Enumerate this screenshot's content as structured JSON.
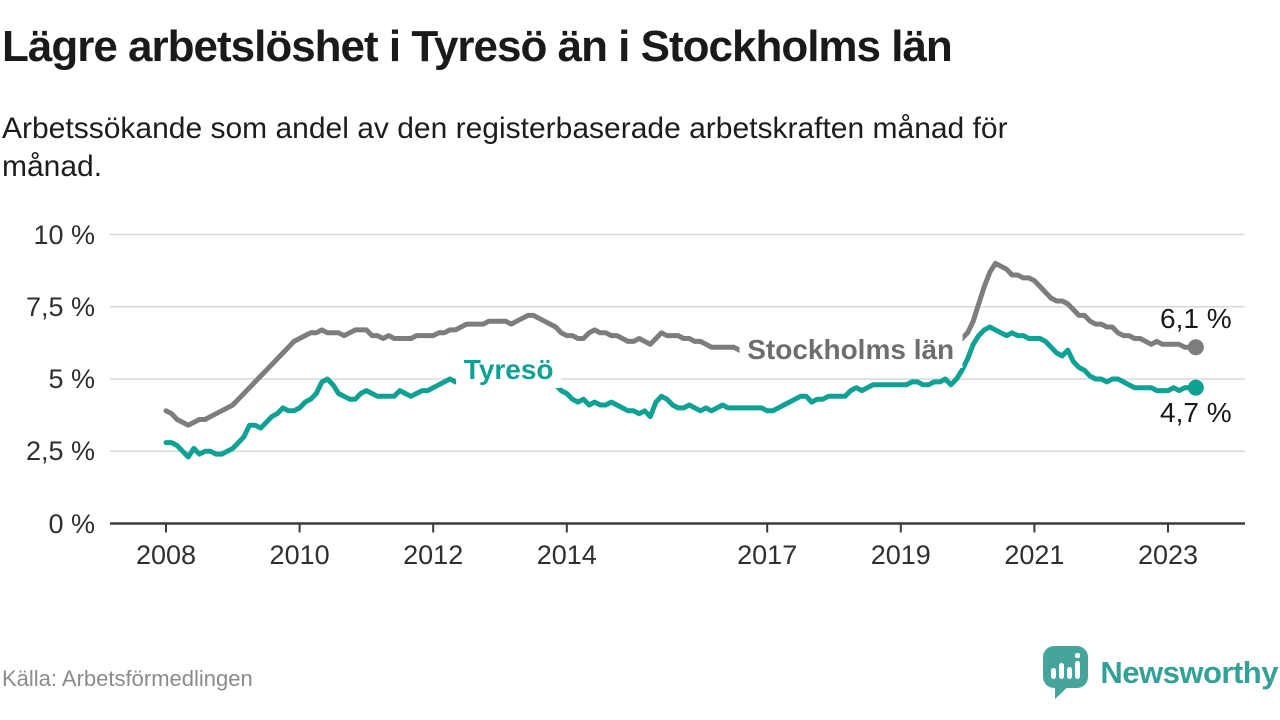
{
  "title": "Lägre arbetslöshet i Tyresö än i Stockholms län",
  "subtitle_lines": {
    "line1": "Arbetssökande som andel av den registerbaserade arbetskraften månad för",
    "line2": "månad."
  },
  "source": "Källa: Arbetsförmedlingen",
  "logo": {
    "name": "Newsworthy",
    "icon": "newsworthy-speech-bubble-bar-chart-icon",
    "bubble_color": "#45a59d",
    "text_color": "#35a098"
  },
  "colors": {
    "background": "#ffffff",
    "gridline": "#d8d8d8",
    "axis": "#3a3a3a",
    "tick_text": "#2f2f2f",
    "title_text": "#1a1a1a",
    "end_label_text": "#191919",
    "source_text": "#8b8b8b"
  },
  "chart_data": {
    "type": "line",
    "title": "Lägre arbetslöshet i Tyresö än i Stockholms län",
    "subtitle": "Arbetssökande som andel av den registerbaserade arbetskraften månad för månad.",
    "x_interval": "monthly",
    "x_start": "2008-01",
    "x_end": "2023-06",
    "xlim": [
      2008.0,
      2023.6
    ],
    "ylim": [
      0,
      10
    ],
    "grid": "horizontal",
    "y_ticks": [
      {
        "label": "10 %",
        "value": 10
      },
      {
        "label": "7,5 %",
        "value": 7.5
      },
      {
        "label": "5 %",
        "value": 5
      },
      {
        "label": "2,5 %",
        "value": 2.5
      },
      {
        "label": "0 %",
        "value": 0
      }
    ],
    "x_ticks": [
      {
        "label": "2008",
        "year": 2008
      },
      {
        "label": "2010",
        "year": 2010
      },
      {
        "label": "2012",
        "year": 2012
      },
      {
        "label": "2014",
        "year": 2014
      },
      {
        "label": "2017",
        "year": 2017
      },
      {
        "label": "2019",
        "year": 2019
      },
      {
        "label": "2021",
        "year": 2021
      },
      {
        "label": "2023",
        "year": 2023
      }
    ],
    "series": [
      {
        "name": "Stockholms län",
        "color": "#7d7d7d",
        "label_color": "#6e6e6e",
        "end_label": "6,1 %",
        "end_label_position": "above",
        "end_value": 6.1,
        "label_at": {
          "year": 2018.25,
          "value": 6.0
        },
        "values": [
          3.9,
          3.8,
          3.6,
          3.5,
          3.4,
          3.5,
          3.6,
          3.6,
          3.7,
          3.8,
          3.9,
          4.0,
          4.1,
          4.3,
          4.5,
          4.7,
          4.9,
          5.1,
          5.3,
          5.5,
          5.7,
          5.9,
          6.1,
          6.3,
          6.4,
          6.5,
          6.6,
          6.6,
          6.7,
          6.6,
          6.6,
          6.6,
          6.5,
          6.6,
          6.7,
          6.7,
          6.7,
          6.5,
          6.5,
          6.4,
          6.5,
          6.4,
          6.4,
          6.4,
          6.4,
          6.5,
          6.5,
          6.5,
          6.5,
          6.6,
          6.6,
          6.7,
          6.7,
          6.8,
          6.9,
          6.9,
          6.9,
          6.9,
          7.0,
          7.0,
          7.0,
          7.0,
          6.9,
          7.0,
          7.1,
          7.2,
          7.2,
          7.1,
          7.0,
          6.9,
          6.8,
          6.6,
          6.5,
          6.5,
          6.4,
          6.4,
          6.6,
          6.7,
          6.6,
          6.6,
          6.5,
          6.5,
          6.4,
          6.3,
          6.3,
          6.4,
          6.3,
          6.2,
          6.4,
          6.6,
          6.5,
          6.5,
          6.5,
          6.4,
          6.4,
          6.3,
          6.3,
          6.2,
          6.1,
          6.1,
          6.1,
          6.1,
          6.1,
          6.0,
          6.0,
          6.1,
          6.1,
          6.1,
          6.0,
          6.0,
          6.0,
          5.9,
          5.9,
          5.9,
          6.0,
          6.0,
          5.9,
          5.9,
          5.9,
          6.0,
          6.0,
          5.9,
          5.9,
          5.9,
          5.9,
          5.9,
          6.0,
          6.0,
          6.0,
          6.0,
          6.0,
          6.1,
          6.1,
          6.1,
          6.1,
          6.1,
          6.1,
          6.1,
          6.2,
          6.2,
          6.2,
          6.2,
          6.2,
          6.4,
          6.6,
          7.0,
          7.6,
          8.2,
          8.7,
          9.0,
          8.9,
          8.8,
          8.6,
          8.6,
          8.5,
          8.5,
          8.4,
          8.2,
          8.0,
          7.8,
          7.7,
          7.7,
          7.6,
          7.4,
          7.2,
          7.2,
          7.0,
          6.9,
          6.9,
          6.8,
          6.8,
          6.6,
          6.5,
          6.5,
          6.4,
          6.4,
          6.3,
          6.2,
          6.3,
          6.2,
          6.2,
          6.2,
          6.2,
          6.1,
          6.1,
          6.1
        ]
      },
      {
        "name": "Tyresö",
        "color": "#10a195",
        "label_color": "#10a195",
        "end_label": "4,7 %",
        "end_label_position": "below",
        "end_value": 4.7,
        "label_at": {
          "year": 2013.13,
          "value": 5.3
        },
        "values": [
          2.8,
          2.8,
          2.7,
          2.5,
          2.3,
          2.6,
          2.4,
          2.5,
          2.5,
          2.4,
          2.4,
          2.5,
          2.6,
          2.8,
          3.0,
          3.4,
          3.4,
          3.3,
          3.5,
          3.7,
          3.8,
          4.0,
          3.9,
          3.9,
          4.0,
          4.2,
          4.3,
          4.5,
          4.9,
          5.0,
          4.8,
          4.5,
          4.4,
          4.3,
          4.3,
          4.5,
          4.6,
          4.5,
          4.4,
          4.4,
          4.4,
          4.4,
          4.6,
          4.5,
          4.4,
          4.5,
          4.6,
          4.6,
          4.7,
          4.8,
          4.9,
          5.0,
          4.9,
          4.9,
          4.8,
          4.8,
          4.8,
          4.9,
          4.9,
          4.9,
          4.9,
          4.9,
          4.8,
          4.8,
          4.8,
          4.9,
          4.8,
          4.8,
          4.8,
          4.8,
          4.8,
          4.6,
          4.5,
          4.3,
          4.2,
          4.3,
          4.1,
          4.2,
          4.1,
          4.1,
          4.2,
          4.1,
          4.0,
          3.9,
          3.9,
          3.8,
          3.9,
          3.7,
          4.2,
          4.4,
          4.3,
          4.1,
          4.0,
          4.0,
          4.1,
          4.0,
          3.9,
          4.0,
          3.9,
          4.0,
          4.1,
          4.0,
          4.0,
          4.0,
          4.0,
          4.0,
          4.0,
          4.0,
          3.9,
          3.9,
          4.0,
          4.1,
          4.2,
          4.3,
          4.4,
          4.4,
          4.2,
          4.3,
          4.3,
          4.4,
          4.4,
          4.4,
          4.4,
          4.6,
          4.7,
          4.6,
          4.7,
          4.8,
          4.8,
          4.8,
          4.8,
          4.8,
          4.8,
          4.8,
          4.9,
          4.9,
          4.8,
          4.8,
          4.9,
          4.9,
          5.0,
          4.8,
          5.0,
          5.3,
          5.7,
          6.2,
          6.5,
          6.7,
          6.8,
          6.7,
          6.6,
          6.5,
          6.6,
          6.5,
          6.5,
          6.4,
          6.4,
          6.4,
          6.3,
          6.1,
          5.9,
          5.8,
          6.0,
          5.6,
          5.4,
          5.3,
          5.1,
          5.0,
          5.0,
          4.9,
          5.0,
          5.0,
          4.9,
          4.8,
          4.7,
          4.7,
          4.7,
          4.7,
          4.6,
          4.6,
          4.6,
          4.7,
          4.6,
          4.7,
          4.7,
          4.7
        ]
      }
    ]
  }
}
